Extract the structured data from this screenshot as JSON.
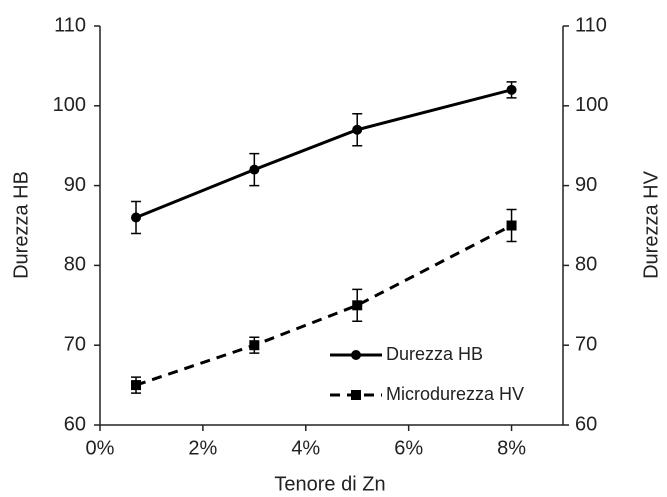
{
  "chart_data": {
    "type": "line",
    "x_label": "Tenore di Zn",
    "y_label": "Durezza HB",
    "y2_label": "Durezza HV",
    "x": [
      0.7,
      3,
      5,
      8
    ],
    "series": [
      {
        "name": "Durezza HB",
        "color": "#000000",
        "dash": "solid",
        "marker": "circle",
        "values": [
          86,
          92,
          97,
          102
        ],
        "errors": [
          2,
          2,
          2,
          1
        ]
      },
      {
        "name": "Microdurezza HV",
        "color": "#000000",
        "dash": "dashed",
        "marker": "square",
        "axis": "y2",
        "values": [
          65,
          70,
          75,
          85
        ],
        "errors": [
          1,
          1,
          2,
          2
        ]
      }
    ],
    "xlim": [
      0,
      9
    ],
    "xticks": [
      {
        "value": 0,
        "label": "0%"
      },
      {
        "value": 2,
        "label": "2%"
      },
      {
        "value": 4,
        "label": "4%"
      },
      {
        "value": 6,
        "label": "6%"
      },
      {
        "value": 8,
        "label": "8%"
      }
    ],
    "ylim": [
      60,
      110
    ],
    "yticks": [
      60,
      70,
      80,
      90,
      100,
      110
    ],
    "y2lim": [
      60,
      110
    ],
    "y2ticks": [
      60,
      70,
      80,
      90,
      100,
      110
    ],
    "legend": "lower right"
  }
}
